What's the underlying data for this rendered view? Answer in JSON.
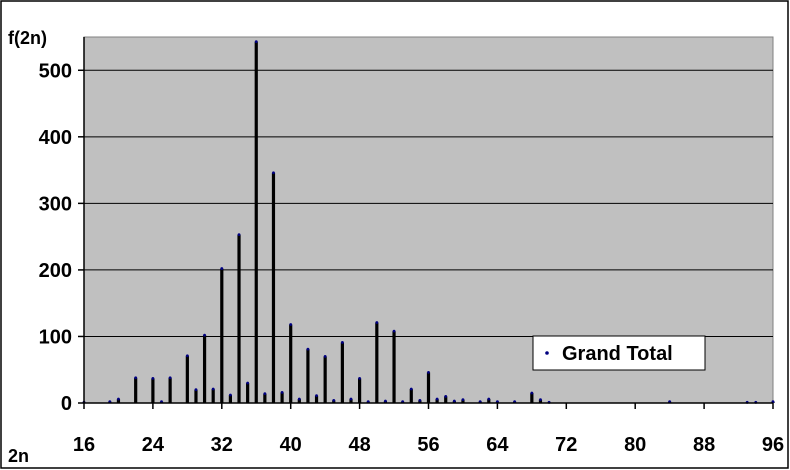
{
  "chart_data": {
    "type": "bar",
    "title": "",
    "xlabel": "2n",
    "ylabel": "f(2n)",
    "xlim": [
      16,
      96
    ],
    "ylim": [
      0,
      550
    ],
    "x_ticks": [
      "16",
      "24",
      "32",
      "40",
      "48",
      "56",
      "64",
      "72",
      "80",
      "88",
      "96"
    ],
    "y_ticks": [
      "0",
      "100",
      "200",
      "300",
      "400",
      "500"
    ],
    "grid": true,
    "legend_position": "lower-right",
    "colors": {
      "plot_bg": "#c0c0c0",
      "bar": "#000000",
      "marker": "#000080",
      "grid": "#000000"
    },
    "series": [
      {
        "name": "Grand Total",
        "x": [
          16,
          19,
          20,
          22,
          24,
          25,
          26,
          28,
          29,
          30,
          31,
          32,
          33,
          34,
          35,
          36,
          37,
          38,
          39,
          40,
          41,
          42,
          43,
          44,
          45,
          46,
          47,
          48,
          49,
          50,
          51,
          52,
          53,
          54,
          55,
          56,
          57,
          58,
          59,
          60,
          62,
          63,
          64,
          66,
          68,
          69,
          70,
          84,
          93,
          94,
          96
        ],
        "values": [
          1,
          2,
          6,
          38,
          37,
          2,
          38,
          71,
          20,
          102,
          21,
          202,
          12,
          253,
          30,
          543,
          14,
          346,
          16,
          118,
          6,
          81,
          11,
          70,
          4,
          91,
          6,
          37,
          2,
          121,
          3,
          108,
          2,
          21,
          4,
          46,
          6,
          10,
          3,
          5,
          2,
          6,
          2,
          2,
          15,
          5,
          1,
          2,
          1,
          1,
          2
        ]
      }
    ]
  }
}
